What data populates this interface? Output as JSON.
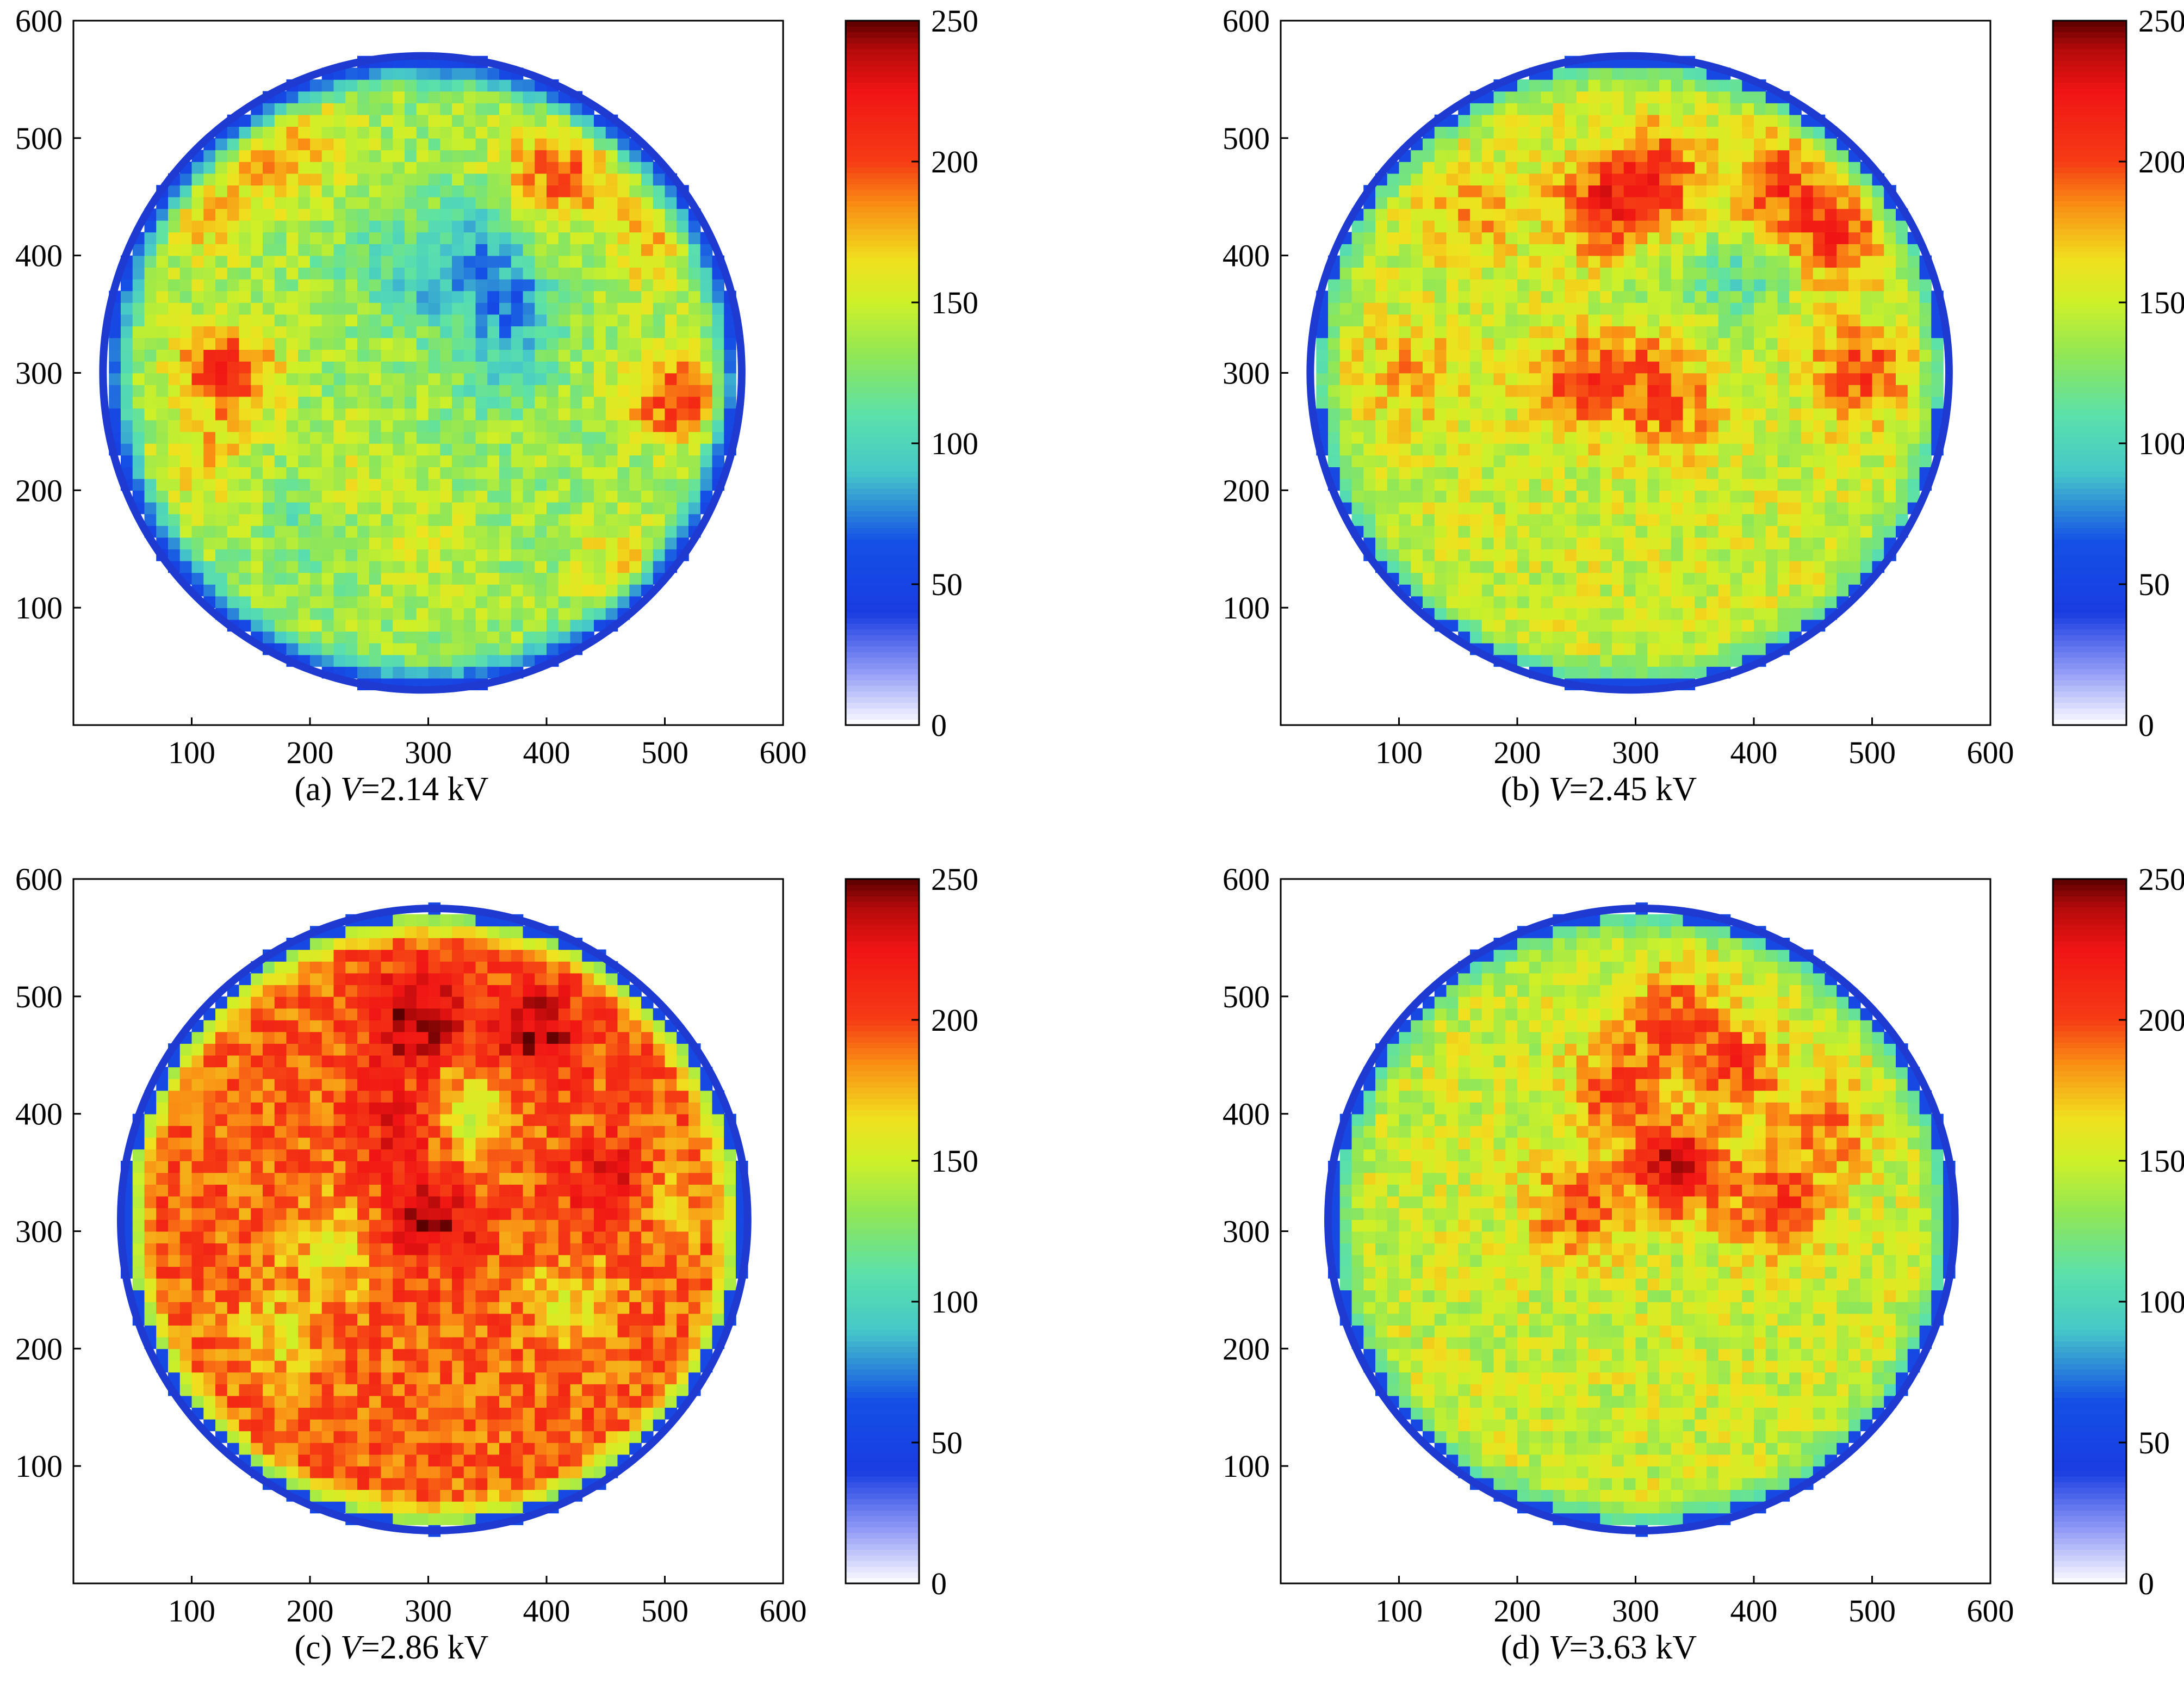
{
  "chart_data": [
    {
      "type": "heatmap",
      "caption": {
        "prefix": "(a) ",
        "variable": "V",
        "value": "=2.14 kV"
      },
      "xlim": [
        0,
        600
      ],
      "ylim": [
        0,
        600
      ],
      "xticks": [
        100,
        200,
        300,
        400,
        500,
        600
      ],
      "yticks": [
        100,
        200,
        300,
        400,
        500,
        600
      ],
      "colorbar": {
        "range": [
          0,
          250
        ],
        "ticks": [
          0,
          50,
          100,
          150,
          200,
          250
        ]
      },
      "disk": {
        "center": [
          295,
          300
        ],
        "radius": 270
      },
      "field": {
        "base": 135,
        "edge": 40,
        "hot_spots": [
          [
            160,
            480,
            30
          ],
          [
            210,
            495,
            25
          ],
          [
            390,
            470,
            40
          ],
          [
            430,
            470,
            35
          ],
          [
            110,
            430,
            30
          ],
          [
            120,
            305,
            45
          ],
          [
            140,
            300,
            35
          ],
          [
            110,
            225,
            35
          ],
          [
            500,
            280,
            45
          ],
          [
            520,
            280,
            30
          ],
          [
            465,
            140,
            30
          ],
          [
            295,
            150,
            20
          ],
          [
            485,
            410,
            35
          ],
          [
            225,
            210,
            20
          ]
        ],
        "cold_spots": [
          [
            340,
            420,
            -40
          ],
          [
            370,
            360,
            -60
          ],
          [
            360,
            300,
            -25
          ],
          [
            300,
            370,
            -30
          ],
          [
            260,
            400,
            -20
          ],
          [
            200,
            180,
            -20
          ]
        ]
      }
    },
    {
      "type": "heatmap",
      "caption": {
        "prefix": "(b) ",
        "variable": "V",
        "value": "=2.45 kV"
      },
      "xlim": [
        0,
        600
      ],
      "ylim": [
        0,
        600
      ],
      "xticks": [
        100,
        200,
        300,
        400,
        500,
        600
      ],
      "yticks": [
        100,
        200,
        300,
        400,
        500,
        600
      ],
      "colorbar": {
        "range": [
          0,
          250
        ],
        "ticks": [
          0,
          50,
          100,
          150,
          200,
          250
        ]
      },
      "disk": {
        "center": [
          295,
          300
        ],
        "radius": 270
      },
      "field": {
        "base": 150,
        "edge": 95,
        "hot_spots": [
          [
            270,
            440,
            60
          ],
          [
            320,
            470,
            55
          ],
          [
            420,
            460,
            50
          ],
          [
            470,
            420,
            55
          ],
          [
            490,
            300,
            55
          ],
          [
            250,
            290,
            50
          ],
          [
            330,
            270,
            40
          ],
          [
            300,
            320,
            35
          ],
          [
            160,
            440,
            30
          ],
          [
            110,
            300,
            30
          ]
        ],
        "cold_spots": [
          [
            390,
            380,
            -40
          ],
          [
            310,
            360,
            -25
          ]
        ]
      }
    },
    {
      "type": "heatmap",
      "caption": {
        "prefix": "(c) ",
        "variable": "V",
        "value": "=2.86 kV"
      },
      "xlim": [
        0,
        600
      ],
      "ylim": [
        0,
        600
      ],
      "xticks": [
        100,
        200,
        300,
        400,
        500,
        600
      ],
      "yticks": [
        100,
        200,
        300,
        400,
        500,
        600
      ],
      "colorbar": {
        "range": [
          0,
          250
        ],
        "ticks": [
          0,
          50,
          100,
          150,
          200,
          250
        ]
      },
      "disk": {
        "center": [
          305,
          310
        ],
        "radius": 265
      },
      "field": {
        "base": 195,
        "edge": 110,
        "hot_spots": [
          [
            290,
            480,
            50
          ],
          [
            390,
            470,
            45
          ],
          [
            300,
            310,
            40
          ],
          [
            460,
            340,
            35
          ],
          [
            280,
            390,
            30
          ]
        ],
        "cold_spots": [
          [
            330,
            400,
            -45
          ],
          [
            220,
            290,
            -35
          ],
          [
            170,
            210,
            -30
          ],
          [
            420,
            240,
            -30
          ],
          [
            500,
            330,
            -25
          ]
        ]
      }
    },
    {
      "type": "heatmap",
      "caption": {
        "prefix": "(d) ",
        "variable": "V",
        "value": "=3.63 kV"
      },
      "xlim": [
        0,
        600
      ],
      "ylim": [
        0,
        600
      ],
      "xticks": [
        100,
        200,
        300,
        400,
        500,
        600
      ],
      "yticks": [
        100,
        200,
        300,
        400,
        500,
        600
      ],
      "colorbar": {
        "range": [
          0,
          250
        ],
        "ticks": [
          0,
          50,
          100,
          150,
          200,
          250
        ]
      },
      "disk": {
        "center": [
          305,
          310
        ],
        "radius": 265
      },
      "field": {
        "base": 150,
        "edge": 95,
        "hot_spots": [
          [
            335,
            355,
            85
          ],
          [
            290,
            420,
            60
          ],
          [
            380,
            440,
            55
          ],
          [
            420,
            320,
            55
          ],
          [
            250,
            320,
            50
          ],
          [
            330,
            480,
            45
          ],
          [
            460,
            390,
            40
          ]
        ],
        "cold_spots": [
          [
            330,
            420,
            -20
          ]
        ]
      }
    }
  ]
}
